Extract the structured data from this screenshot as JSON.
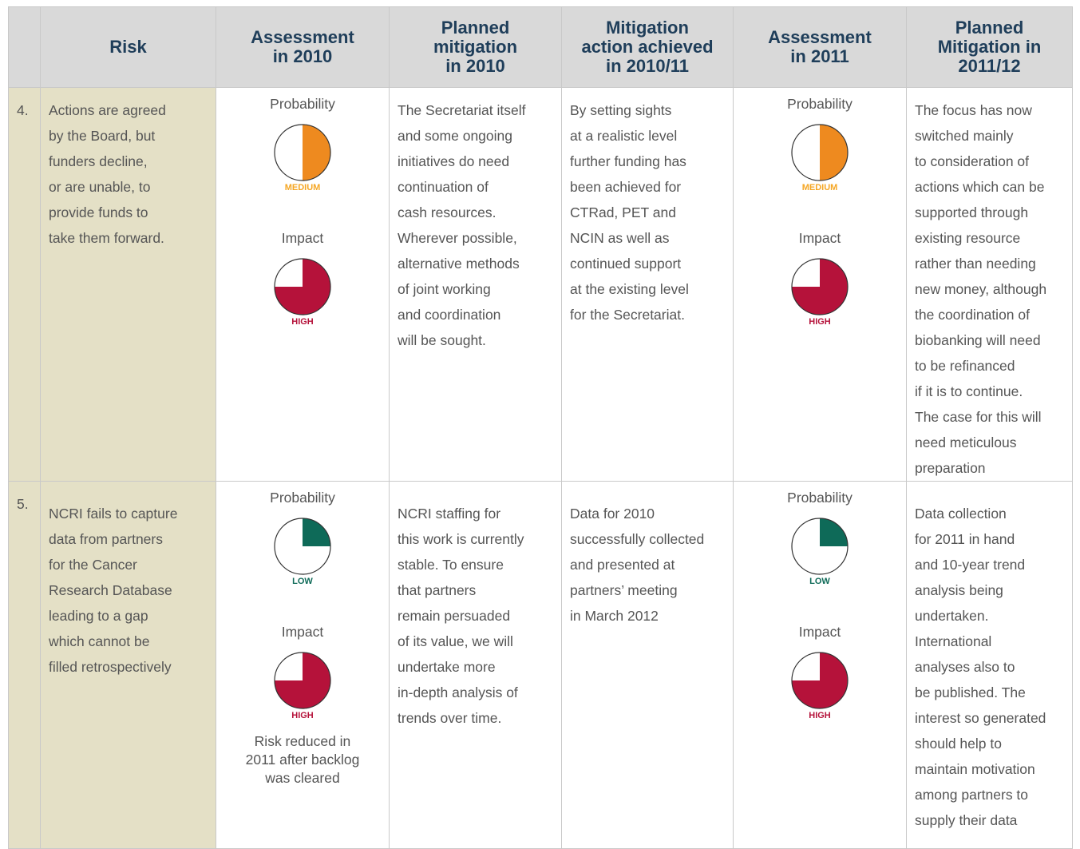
{
  "table": {
    "header": [
      [
        "Risk"
      ],
      [
        "Assessment",
        "in 2010"
      ],
      [
        "Planned",
        "mitigation",
        "in 2010"
      ],
      [
        "Mitigation",
        "action achieved",
        "in 2010/11"
      ],
      [
        "Assessment",
        "in 2011"
      ],
      [
        "Planned",
        "Mitigation in",
        "2011/12"
      ]
    ],
    "rows": [
      {
        "number": "4.",
        "risk": [
          "Actions are agreed",
          "by the Board, but",
          "funders decline,",
          "or are unable, to",
          "provide funds to",
          "take them forward."
        ],
        "assessment_2010": {
          "probability_label": "Probability",
          "probability": "MEDIUM",
          "impact_label": "Impact",
          "impact": "HIGH"
        },
        "planned_2010": [
          "The Secretariat itself",
          "and some ongoing",
          "initiatives do need",
          "continuation of",
          "cash resources.",
          "Wherever possible,",
          "alternative methods",
          "of joint working",
          "and coordination",
          "will be sought."
        ],
        "achieved": [
          "By setting sights",
          "at a realistic level",
          "further funding has",
          "been achieved for",
          "CTRad, PET and",
          "NCIN as well as",
          "continued support",
          "at the existing level",
          "for the Secretariat."
        ],
        "assessment_2011": {
          "probability_label": "Probability",
          "probability": "MEDIUM",
          "impact_label": "Impact",
          "impact": "HIGH"
        },
        "planned_2011_12": [
          "The focus has now",
          "switched mainly",
          "to consideration of",
          "actions which can be",
          "supported through",
          "existing resource",
          "rather than needing",
          "new money, although",
          "the coordination of",
          "biobanking will need",
          "to be refinanced",
          "if it is to continue.",
          "The case for this will",
          "need meticulous",
          "preparation"
        ]
      },
      {
        "number": "5.",
        "risk": [
          "NCRI fails to capture",
          "data from partners",
          "for the Cancer",
          "Research Database",
          "leading to a gap",
          "which cannot be",
          "filled retrospectively"
        ],
        "assessment_2010": {
          "probability_label": "Probability",
          "probability": "LOW",
          "impact_label": "Impact",
          "impact": "HIGH",
          "note": [
            "Risk reduced in",
            "2011 after backlog",
            "was cleared"
          ]
        },
        "planned_2010": [
          "NCRI staffing for",
          "this work is currently",
          "stable. To ensure",
          "that partners",
          "remain persuaded",
          "of its value, we will",
          "undertake more",
          "in-depth analysis of",
          "trends over time."
        ],
        "achieved": [
          "Data for 2010",
          "successfully collected",
          "and presented at",
          "partners’ meeting",
          "in March 2012"
        ],
        "assessment_2011": {
          "probability_label": "Probability",
          "probability": "LOW",
          "impact_label": "Impact",
          "impact": "HIGH"
        },
        "planned_2011_12": [
          "Data collection",
          "for 2011 in hand",
          "and 10-year trend",
          "analysis being",
          "undertaken.",
          "International",
          "analyses also to",
          "be published. The",
          "interest so generated",
          "should help to",
          "maintain motivation",
          "among partners to",
          "supply their data"
        ]
      }
    ]
  }
}
